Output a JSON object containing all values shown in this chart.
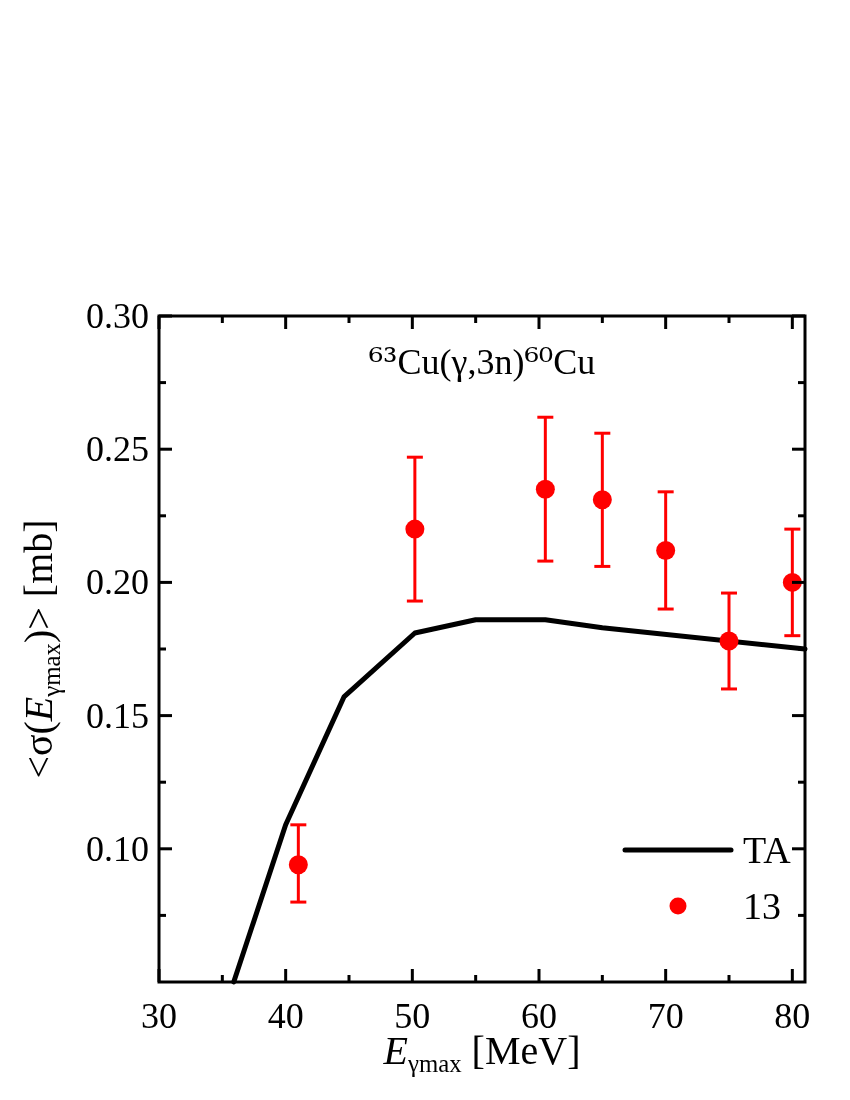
{
  "chart_data": {
    "type": "line",
    "title": "⁶³Cu(γ,3n)⁶⁰Cu",
    "xlabel": "E$_{γmax}$ [MeV]",
    "ylabel": "<σ(E$_{γmax}$)> [mb]",
    "xlim": [
      30,
      81
    ],
    "ylim": [
      0.05,
      0.3
    ],
    "xticks": [
      30,
      {
        "value": 35,
        "label": null
      },
      40,
      {
        "value": 45,
        "label": null
      },
      50,
      {
        "value": 55,
        "label": null
      },
      60,
      {
        "value": 65,
        "label": null
      },
      70,
      {
        "value": 75,
        "label": null
      },
      80
    ],
    "yticks": [
      {
        "value": 0.075,
        "label": null
      },
      {
        "value": 0.1,
        "label": "0.10"
      },
      {
        "value": 0.125,
        "label": null
      },
      0.15,
      {
        "value": 0.175,
        "label": null
      },
      {
        "value": 0.2,
        "label": "0.20"
      },
      {
        "value": 0.225,
        "label": null
      },
      0.25,
      {
        "value": 0.275,
        "label": null
      },
      {
        "value": 0.3,
        "label": "0.30"
      }
    ],
    "legend": "bottom right",
    "series": [
      {
        "name": "TA",
        "color": "#000000",
        "x": [
          35.9,
          40,
          44.6,
          50.2,
          55,
          60.5,
          65,
          81
        ],
        "values": [
          0.05,
          0.109,
          0.157,
          0.181,
          0.186,
          0.186,
          0.183,
          0.175
        ]
      },
      {
        "type": "scatter",
        "name": "13",
        "color": "#ff0000",
        "marker": "circle",
        "x": [
          41,
          50.2,
          60.5,
          65,
          70,
          75,
          80
        ],
        "values": [
          0.094,
          0.22,
          0.235,
          0.231,
          0.212,
          0.178,
          0.2
        ],
        "errors": [
          [
            0.08,
            0.109
          ],
          [
            0.193,
            0.247
          ],
          [
            0.208,
            0.262
          ],
          [
            0.206,
            0.256
          ],
          [
            0.19,
            0.234
          ],
          [
            0.16,
            0.196
          ],
          [
            0.18,
            0.22
          ]
        ]
      }
    ]
  }
}
